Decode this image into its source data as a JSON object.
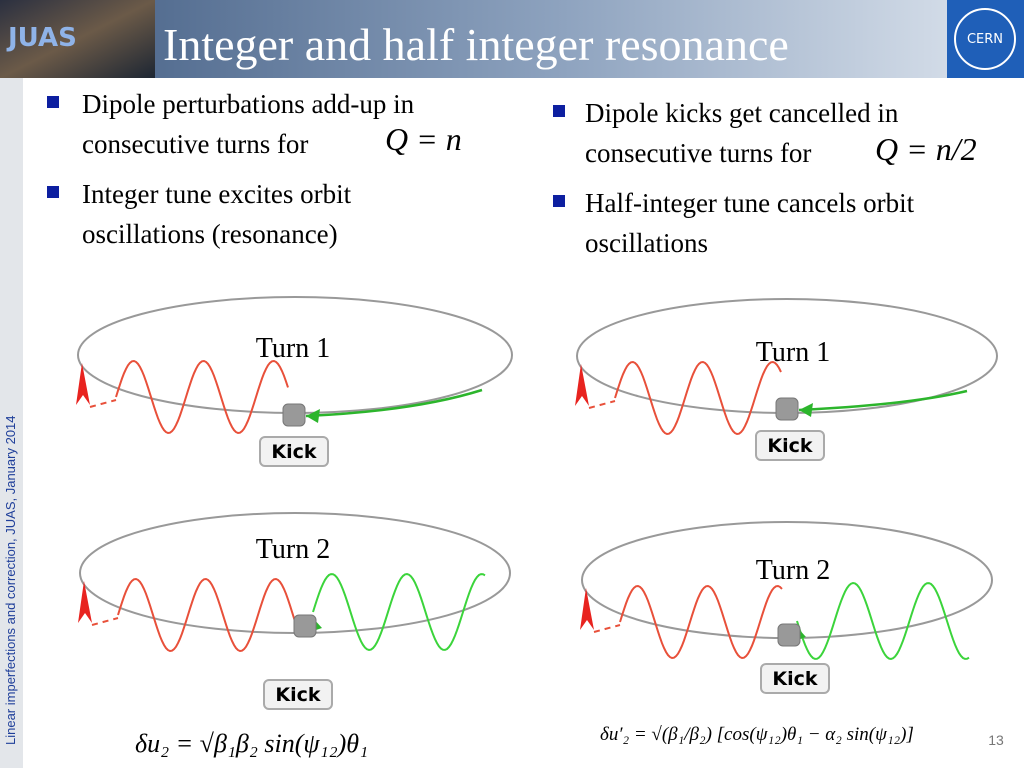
{
  "header": {
    "title": "Integer and half integer resonance",
    "logo_left": "JUAS",
    "logo_right": "CERN"
  },
  "sidebar": "Linear imperfections and correction, JUAS, January 2014",
  "left_column": {
    "bullets": [
      {
        "lines": [
          "Dipole perturbations add-up in",
          "consecutive turns for"
        ],
        "math": "Q = n"
      },
      {
        "lines": [
          "Integer tune excites orbit",
          "oscillations (resonance)"
        ]
      }
    ],
    "diagrams": [
      {
        "label": "Turn 1",
        "kick": "Kick"
      },
      {
        "label": "Turn 2",
        "kick": "Kick"
      }
    ],
    "formula": "δu₂ = √β₁β₂ sin(ψ₁₂)θ₁"
  },
  "right_column": {
    "bullets": [
      {
        "lines": [
          "Dipole kicks get cancelled in",
          "consecutive turns for"
        ],
        "math": "Q = n/2"
      },
      {
        "lines": [
          "Half-integer tune cancels orbit",
          "oscillations"
        ]
      }
    ],
    "diagrams": [
      {
        "label": "Turn 1",
        "kick": "Kick"
      },
      {
        "label": "Turn 2",
        "kick": "Kick"
      }
    ],
    "formula": "δu′₂ = √(β₁/β₂) [cos(ψ₁₂)θ₁ − α₂ sin(ψ₁₂)]"
  },
  "page_number": "13"
}
